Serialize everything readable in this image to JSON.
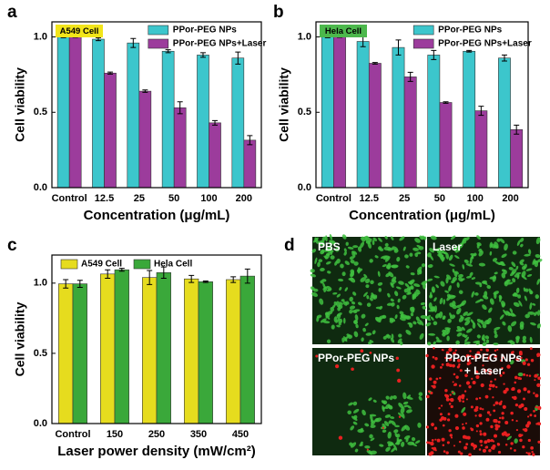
{
  "chart_data": [
    {
      "type": "bar",
      "panel_label": "a",
      "annotation": {
        "text": "A549 Cell",
        "color": "#f2e51a"
      },
      "xlabel": "Concentration (μg/mL)",
      "ylabel": "Cell viability",
      "categories": [
        "Control",
        "12.5",
        "25",
        "50",
        "100",
        "200"
      ],
      "series": [
        {
          "name": "PPor-PEG NPs",
          "color": "#3cc6cc",
          "values": [
            1.0,
            0.985,
            0.96,
            0.905,
            0.88,
            0.86
          ],
          "errors": [
            0.005,
            0.01,
            0.03,
            0.01,
            0.015,
            0.04
          ]
        },
        {
          "name": "PPor-PEG NPs+Laser",
          "color": "#9c3c9c",
          "values": [
            1.0,
            0.76,
            0.64,
            0.53,
            0.43,
            0.315
          ],
          "errors": [
            0.003,
            0.007,
            0.008,
            0.04,
            0.015,
            0.03
          ]
        }
      ],
      "ylim": [
        0,
        1.1
      ],
      "yticks": [
        {
          "value": 0,
          "label": "0.0"
        },
        0.5,
        {
          "value": 1,
          "label": "1.0"
        }
      ]
    },
    {
      "type": "bar",
      "panel_label": "b",
      "annotation": {
        "text": "Hela Cell",
        "color": "#4cb84c"
      },
      "xlabel": "Concentration (μg/mL)",
      "ylabel": "Cell viability",
      "categories": [
        "Control",
        "12.5",
        "25",
        "50",
        "100",
        "200"
      ],
      "series": [
        {
          "name": "PPor-PEG NPs",
          "color": "#3cc6cc",
          "values": [
            1.0,
            0.97,
            0.93,
            0.88,
            0.905,
            0.86
          ],
          "errors": [
            0.005,
            0.035,
            0.05,
            0.03,
            0.005,
            0.02
          ]
        },
        {
          "name": "PPor-PEG NPs+Laser",
          "color": "#9c3c9c",
          "values": [
            1.0,
            0.825,
            0.735,
            0.565,
            0.51,
            0.385
          ],
          "errors": [
            0.003,
            0.005,
            0.03,
            0.005,
            0.03,
            0.03
          ]
        }
      ],
      "ylim": [
        0,
        1.1
      ],
      "yticks": [
        {
          "value": 0,
          "label": "0.0"
        },
        0.5,
        {
          "value": 1,
          "label": "1.0"
        }
      ]
    },
    {
      "type": "bar",
      "panel_label": "c",
      "xlabel": "Laser power density (mW/cm²)",
      "ylabel": "Cell viability",
      "categories": [
        "Control",
        "150",
        "250",
        "350",
        "450"
      ],
      "series": [
        {
          "name": "A549 Cell",
          "color": "#e6dc1e",
          "values": [
            0.995,
            1.065,
            1.04,
            1.03,
            1.025
          ],
          "errors": [
            0.03,
            0.03,
            0.05,
            0.025,
            0.02
          ]
        },
        {
          "name": "Hela Cell",
          "color": "#3aa83a",
          "values": [
            0.995,
            1.095,
            1.075,
            1.01,
            1.05
          ],
          "errors": [
            0.025,
            0.01,
            0.04,
            0.005,
            0.05
          ]
        }
      ],
      "ylim": [
        0,
        1.2
      ],
      "yticks": [
        {
          "value": 0,
          "label": "0.0"
        },
        0.5,
        {
          "value": 1,
          "label": "1.0"
        }
      ]
    }
  ],
  "images": {
    "panel_label": "d",
    "panels": [
      "PBS",
      "Laser",
      "PPor-PEG NPs",
      "PPor-PEG NPs\n+ Laser"
    ]
  }
}
